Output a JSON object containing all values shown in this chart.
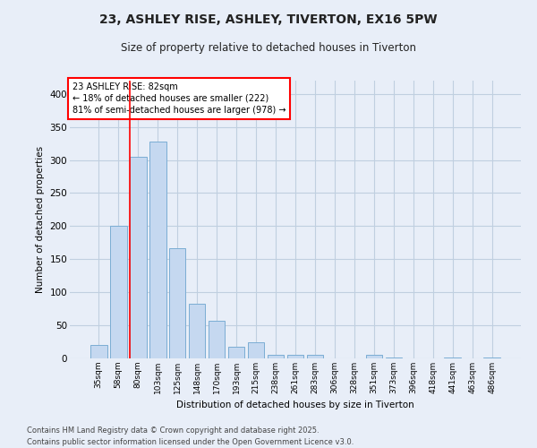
{
  "title1": "23, ASHLEY RISE, ASHLEY, TIVERTON, EX16 5PW",
  "title2": "Size of property relative to detached houses in Tiverton",
  "xlabel": "Distribution of detached houses by size in Tiverton",
  "ylabel": "Number of detached properties",
  "bar_color": "#c5d8f0",
  "bar_edge_color": "#7badd4",
  "categories": [
    "35sqm",
    "58sqm",
    "80sqm",
    "103sqm",
    "125sqm",
    "148sqm",
    "170sqm",
    "193sqm",
    "215sqm",
    "238sqm",
    "261sqm",
    "283sqm",
    "306sqm",
    "328sqm",
    "351sqm",
    "373sqm",
    "396sqm",
    "418sqm",
    "441sqm",
    "463sqm",
    "486sqm"
  ],
  "values": [
    20,
    200,
    305,
    328,
    166,
    82,
    57,
    18,
    25,
    6,
    5,
    6,
    0,
    0,
    5,
    2,
    0,
    0,
    2,
    0,
    2
  ],
  "red_line_x": 2.0,
  "annotation_title": "23 ASHLEY RISE: 82sqm",
  "annotation_line1": "← 18% of detached houses are smaller (222)",
  "annotation_line2": "81% of semi-detached houses are larger (978) →",
  "ylim": [
    0,
    420
  ],
  "yticks": [
    0,
    50,
    100,
    150,
    200,
    250,
    300,
    350,
    400
  ],
  "footnote1": "Contains HM Land Registry data © Crown copyright and database right 2025.",
  "footnote2": "Contains public sector information licensed under the Open Government Licence v3.0.",
  "background_color": "#e8eef8",
  "plot_bg_color": "#e8eef8",
  "grid_color": "#c0cfe0"
}
